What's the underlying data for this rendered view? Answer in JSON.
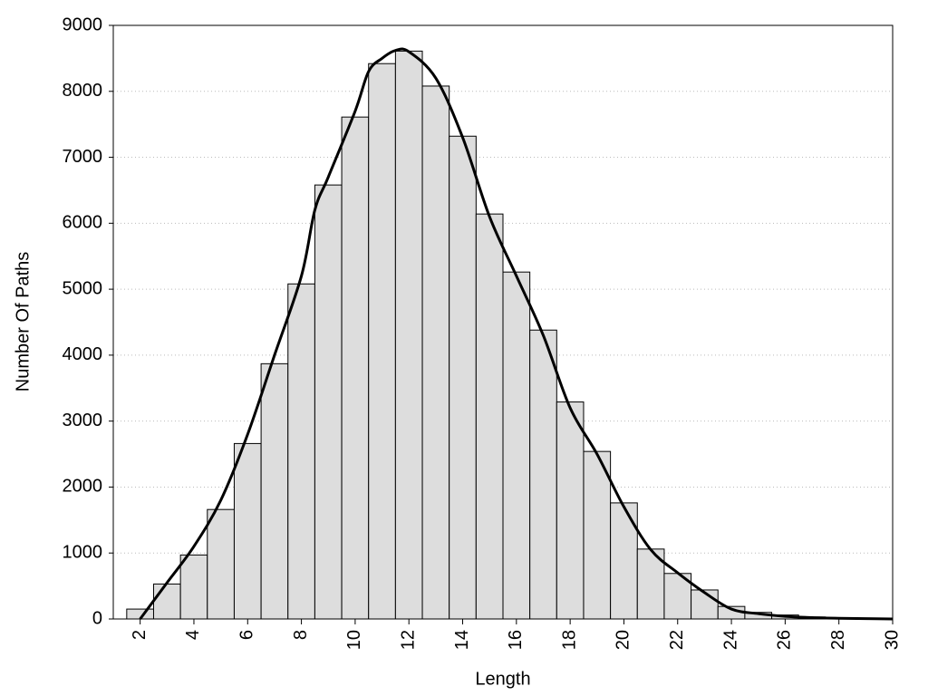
{
  "chart_data": {
    "type": "histogram",
    "xlabel": "Length",
    "ylabel": "Number Of Paths",
    "bins": [
      1.5,
      2.5,
      3.5,
      4.5,
      5.5,
      6.5,
      7.5,
      8.5,
      9.5,
      10.5,
      11.5,
      12.5,
      13.5,
      14.5,
      15.5,
      16.5,
      17.5,
      18.5,
      19.5,
      20.5,
      21.5,
      22.5,
      23.5,
      24.5,
      25.5,
      26.5,
      27.5,
      28.5,
      29.5
    ],
    "counts": [
      150,
      530,
      970,
      1660,
      2660,
      3870,
      5080,
      6580,
      7610,
      8420,
      8610,
      8080,
      7320,
      6140,
      5260,
      4380,
      3290,
      2540,
      1760,
      1060,
      690,
      440,
      190,
      100,
      60,
      30,
      20,
      10
    ],
    "color": "#dddddd",
    "curve": {
      "color": "#000000",
      "x": [
        2,
        3,
        4,
        5,
        6,
        7,
        8,
        8.5,
        9,
        10,
        10.5,
        11,
        11.5,
        12,
        13,
        14,
        15,
        16,
        17,
        18,
        19,
        20,
        21,
        22,
        23,
        24,
        25,
        26,
        27,
        28,
        29,
        30
      ],
      "values": [
        0,
        550,
        1100,
        1800,
        2800,
        4000,
        5200,
        6200,
        6700,
        7700,
        8300,
        8500,
        8620,
        8600,
        8200,
        7300,
        6100,
        5200,
        4300,
        3200,
        2500,
        1700,
        1050,
        700,
        400,
        150,
        80,
        40,
        20,
        10,
        5,
        0
      ]
    },
    "xlim": [
      1,
      30
    ],
    "xticks": [
      2,
      4,
      6,
      8,
      10,
      12,
      14,
      16,
      18,
      20,
      22,
      24,
      26,
      28,
      30
    ],
    "ylim": [
      0,
      9000
    ],
    "yticks": [
      0,
      1000,
      2000,
      3000,
      4000,
      5000,
      6000,
      7000,
      8000,
      9000
    ],
    "grid": true
  }
}
